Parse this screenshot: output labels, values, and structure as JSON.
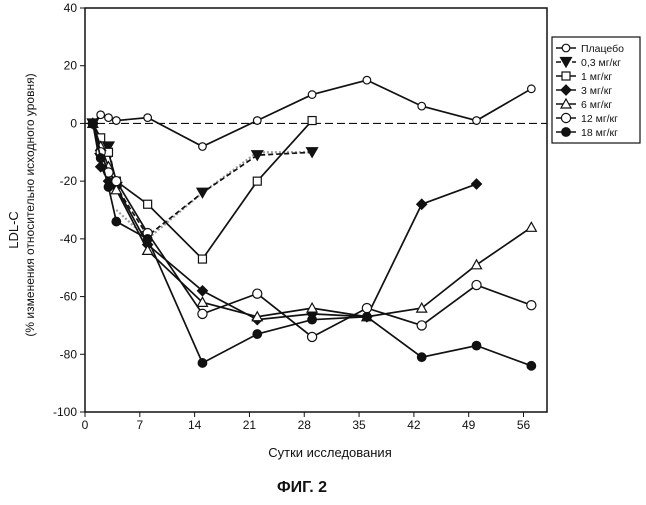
{
  "figure_label": "ФИГ. 2",
  "colors": {
    "axis": "#111111",
    "series": "#111111",
    "gray_line": "#9a9a9a",
    "background": "#ffffff"
  },
  "chart_data": {
    "type": "line",
    "title": "",
    "xlabel": "Сутки исследования",
    "ylabel": "LDL-C",
    "ylabel_secondary": "(% изменения относительно исходного уровня)",
    "xlim": [
      0,
      59
    ],
    "ylim": [
      -100,
      40
    ],
    "x_ticks": [
      0,
      7,
      14,
      21,
      28,
      35,
      42,
      49,
      56
    ],
    "y_ticks": [
      -100,
      -80,
      -60,
      -40,
      -20,
      0,
      20,
      40
    ],
    "reference_line_y": 0,
    "legend_position": "top-right",
    "series": [
      {
        "name": "Плацебо",
        "marker": "circle-open",
        "line": "solid",
        "x": [
          1,
          2,
          3,
          4,
          8,
          15,
          22,
          29,
          36,
          43,
          50,
          57
        ],
        "y": [
          0,
          3,
          2,
          1,
          2,
          -8,
          1,
          10,
          15,
          6,
          1,
          12
        ]
      },
      {
        "name": "0,3 мг/кг",
        "marker": "triangle-down-filled",
        "line": "dashed",
        "x": [
          1,
          2,
          3,
          4,
          8,
          15,
          22,
          29
        ],
        "y": [
          0,
          -12,
          -8,
          -22,
          -39,
          -24,
          -11,
          -10
        ]
      },
      {
        "name": "1 мг/кг",
        "marker": "square-open",
        "line": "solid",
        "x": [
          1,
          2,
          3,
          4,
          8,
          15,
          22,
          29
        ],
        "y": [
          0,
          -5,
          -10,
          -20,
          -28,
          -47,
          -20,
          1
        ]
      },
      {
        "name": "3 мг/кг",
        "marker": "diamond-filled",
        "line": "solid",
        "x": [
          1,
          2,
          3,
          4,
          8,
          15,
          22,
          29,
          36,
          43,
          50
        ],
        "y": [
          0,
          -15,
          -20,
          -22,
          -42,
          -58,
          -68,
          -66,
          -67,
          -28,
          -21
        ]
      },
      {
        "name": "6 мг/кг",
        "marker": "triangle-up-open",
        "line": "solid",
        "x": [
          1,
          2,
          3,
          4,
          8,
          15,
          22,
          29,
          36,
          43,
          50,
          57
        ],
        "y": [
          0,
          -8,
          -15,
          -23,
          -44,
          -62,
          -67,
          -64,
          -67,
          -64,
          -49,
          -36
        ]
      },
      {
        "name": "12 мг/кг",
        "marker": "circle-open-large",
        "line": "solid",
        "x": [
          1,
          2,
          3,
          4,
          8,
          15,
          22,
          29,
          36,
          43,
          50,
          57
        ],
        "y": [
          0,
          -10,
          -17,
          -20,
          -38,
          -66,
          -59,
          -74,
          -64,
          -70,
          -56,
          -63
        ]
      },
      {
        "name": "18 мг/кг",
        "marker": "circle-filled",
        "line": "solid",
        "x": [
          1,
          2,
          3,
          4,
          8,
          15,
          22,
          29,
          36,
          43,
          50,
          57
        ],
        "y": [
          0,
          -12,
          -22,
          -34,
          -40,
          -83,
          -73,
          -68,
          -67,
          -81,
          -77,
          -84
        ]
      }
    ],
    "secondary_lines": [
      {
        "name": "",
        "color": "#9a9a9a",
        "style": "dotted",
        "x": [
          4,
          8,
          15,
          22,
          29
        ],
        "y": [
          -30,
          -40,
          -24,
          -10,
          -10
        ]
      }
    ]
  }
}
